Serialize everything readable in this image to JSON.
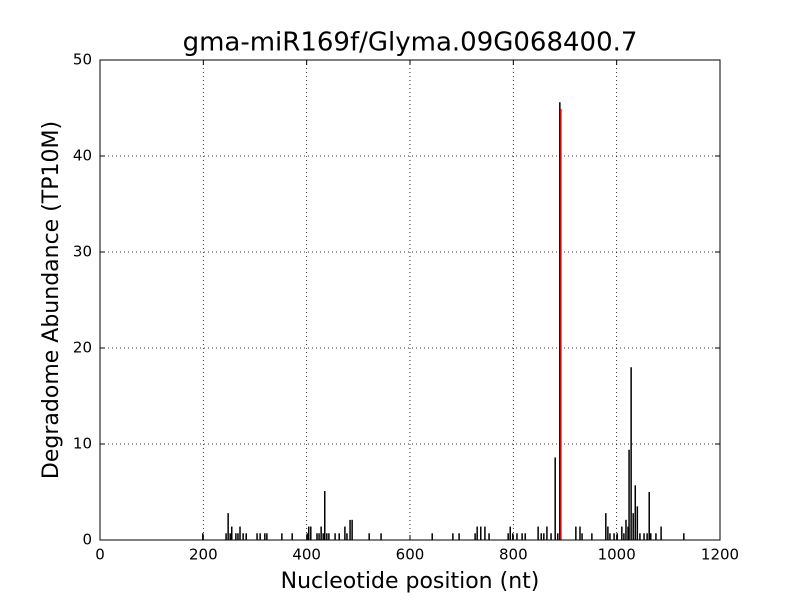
{
  "chart_data": {
    "type": "vlines",
    "title": "gma-miR169f/Glyma.09G068400.7",
    "x_label": "Nucleotide position (nt)",
    "y_label": "Degradome Abundance (TP10M)",
    "xlim": [
      0,
      1200
    ],
    "xticks": [
      0,
      200,
      400,
      600,
      800,
      1000,
      1200
    ],
    "ylim": [
      0,
      50
    ],
    "yticks": [
      0,
      10,
      20,
      30,
      40,
      50
    ],
    "grid": true,
    "series": [
      {
        "color": "#000000",
        "x": [
          199,
          244,
          248,
          252,
          255,
          263,
          267,
          271,
          277,
          283,
          304,
          310,
          319,
          323,
          352,
          372,
          401,
          404,
          408,
          420,
          424,
          428,
          432,
          435,
          439,
          443,
          455,
          463,
          474,
          478,
          484,
          488,
          521,
          544,
          643,
          683,
          695,
          726,
          730,
          737,
          745,
          753,
          790,
          794,
          799,
          807,
          817,
          823,
          848,
          854,
          859,
          865,
          873,
          881,
          886,
          890,
          921,
          929,
          933,
          952,
          979,
          983,
          987,
          995,
          1001,
          1010,
          1014,
          1018,
          1022,
          1024,
          1028,
          1032,
          1036,
          1040,
          1045,
          1053,
          1059,
          1063,
          1066,
          1076,
          1086,
          1130
        ],
        "values": [
          0.7,
          0.7,
          2.8,
          0.7,
          1.4,
          0.7,
          0.7,
          1.4,
          0.7,
          0.7,
          0.7,
          0.7,
          0.7,
          0.7,
          0.7,
          0.7,
          0.7,
          1.4,
          1.4,
          0.7,
          0.7,
          1.4,
          0.7,
          5.1,
          0.7,
          0.7,
          0.7,
          0.7,
          1.4,
          0.7,
          2.1,
          2.1,
          0.7,
          0.7,
          0.7,
          0.7,
          0.7,
          0.7,
          1.4,
          1.4,
          1.4,
          0.7,
          0.7,
          1.4,
          0.7,
          0.7,
          0.7,
          0.7,
          1.4,
          0.7,
          0.7,
          1.4,
          0.7,
          8.6,
          0.7,
          45.6,
          1.4,
          1.4,
          0.7,
          0.7,
          2.8,
          1.4,
          0.7,
          0.7,
          0.7,
          1.4,
          0.7,
          2.1,
          1.4,
          9.4,
          18.0,
          2.8,
          5.7,
          3.5,
          0.7,
          0.7,
          0.7,
          5.0,
          0.7,
          0.7,
          1.4,
          0.7
        ]
      },
      {
        "color": "#ff0000",
        "x": [
          892
        ],
        "values": [
          44.9
        ]
      }
    ]
  }
}
